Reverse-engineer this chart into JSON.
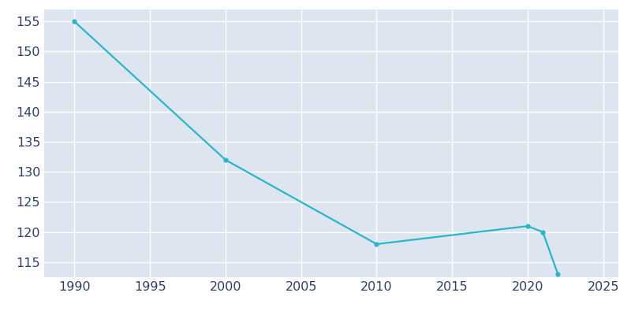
{
  "years": [
    1990,
    2000,
    2010,
    2020,
    2021,
    2022
  ],
  "population": [
    155,
    132,
    118,
    121,
    120,
    113
  ],
  "line_color": "#29b6c8",
  "marker": "o",
  "marker_size": 3.5,
  "linewidth": 1.6,
  "axes_bg_color": "#dde6f0",
  "fig_bg_color": "#ffffff",
  "grid_color": "#ffffff",
  "xlim": [
    1988,
    2026
  ],
  "ylim": [
    112.5,
    157
  ],
  "xticks": [
    1990,
    1995,
    2000,
    2005,
    2010,
    2015,
    2020,
    2025
  ],
  "yticks": [
    115,
    120,
    125,
    130,
    135,
    140,
    145,
    150,
    155
  ],
  "tick_color": "#2e3f6e",
  "tick_fontsize": 11.5
}
